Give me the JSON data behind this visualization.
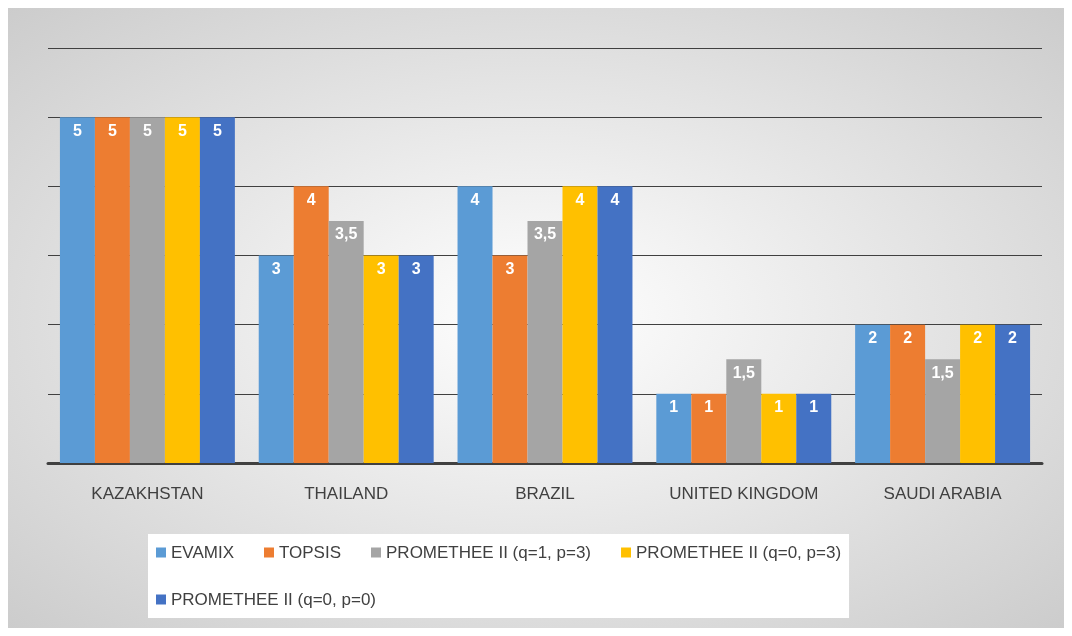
{
  "chart_data": {
    "type": "bar",
    "categories": [
      "KAZAKHSTAN",
      "THAILAND",
      "BRAZIL",
      "UNITED KINGDOM",
      "SAUDI ARABIA"
    ],
    "series": [
      {
        "name": "EVAMIX",
        "color": "#5b9bd5",
        "values": [
          5,
          3,
          4,
          1,
          2
        ],
        "value_labels": [
          "5",
          "3",
          "4",
          "1",
          "2"
        ]
      },
      {
        "name": "TOPSIS",
        "color": "#ed7d31",
        "values": [
          5,
          4,
          3,
          1,
          2
        ],
        "value_labels": [
          "5",
          "4",
          "3",
          "1",
          "2"
        ]
      },
      {
        "name": "PROMETHEE II (q=1, p=3)",
        "color": "#a5a5a5",
        "values": [
          5,
          3.5,
          3.5,
          1.5,
          1.5
        ],
        "value_labels": [
          "5",
          "3,5",
          "3,5",
          "1,5",
          "1,5"
        ]
      },
      {
        "name": "PROMETHEE II (q=0, p=3)",
        "color": "#ffc000",
        "values": [
          5,
          3,
          4,
          1,
          2
        ],
        "value_labels": [
          "5",
          "3",
          "4",
          "1",
          "2"
        ]
      },
      {
        "name": "PROMETHEE II (q=0, p=0)",
        "color": "#4472c4",
        "values": [
          5,
          3,
          4,
          1,
          2
        ],
        "value_labels": [
          "5",
          "3",
          "4",
          "1",
          "2"
        ]
      }
    ],
    "ylim": [
      0,
      6
    ],
    "yticks": [
      {
        "value": 0,
        "label": null
      },
      {
        "value": 1,
        "label": null
      },
      {
        "value": 2,
        "label": null
      },
      {
        "value": 3,
        "label": null
      },
      {
        "value": 4,
        "label": null
      },
      {
        "value": 5,
        "label": null
      },
      {
        "value": 6,
        "label": null
      }
    ],
    "tick_labels": "x",
    "grid": "y",
    "legend": "bottom"
  }
}
